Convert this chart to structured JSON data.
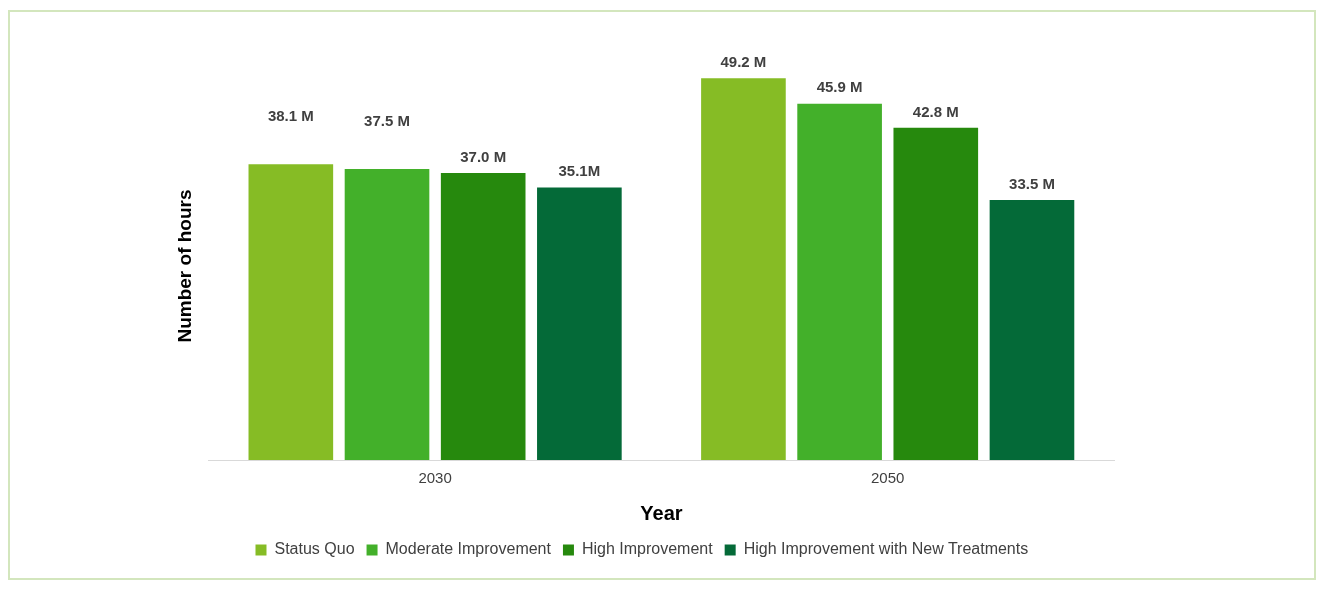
{
  "chart_data": {
    "type": "bar",
    "xlabel": "Year",
    "ylabel": "Number of hours",
    "categories": [
      "2030",
      "2050"
    ],
    "series": [
      {
        "name": "Status Quo",
        "color": "#86bc25",
        "values": [
          38.1,
          49.2
        ],
        "value_labels": [
          "38.1 M",
          "49.2 M"
        ]
      },
      {
        "name": "Moderate Improvement",
        "color": "#43b02a",
        "values": [
          37.5,
          45.9
        ],
        "value_labels": [
          "37.5 M",
          "45.9 M"
        ]
      },
      {
        "name": "High Improvement",
        "color": "#26890d",
        "values": [
          37.0,
          42.8
        ],
        "value_labels": [
          "37.0 M",
          "42.8 M"
        ]
      },
      {
        "name": "High Improvement with New Treatments",
        "color": "#046a38",
        "values": [
          35.1,
          33.5
        ],
        "value_labels": [
          "35.1M",
          "33.5 M"
        ]
      }
    ],
    "grid": false,
    "legend": "bottom"
  }
}
